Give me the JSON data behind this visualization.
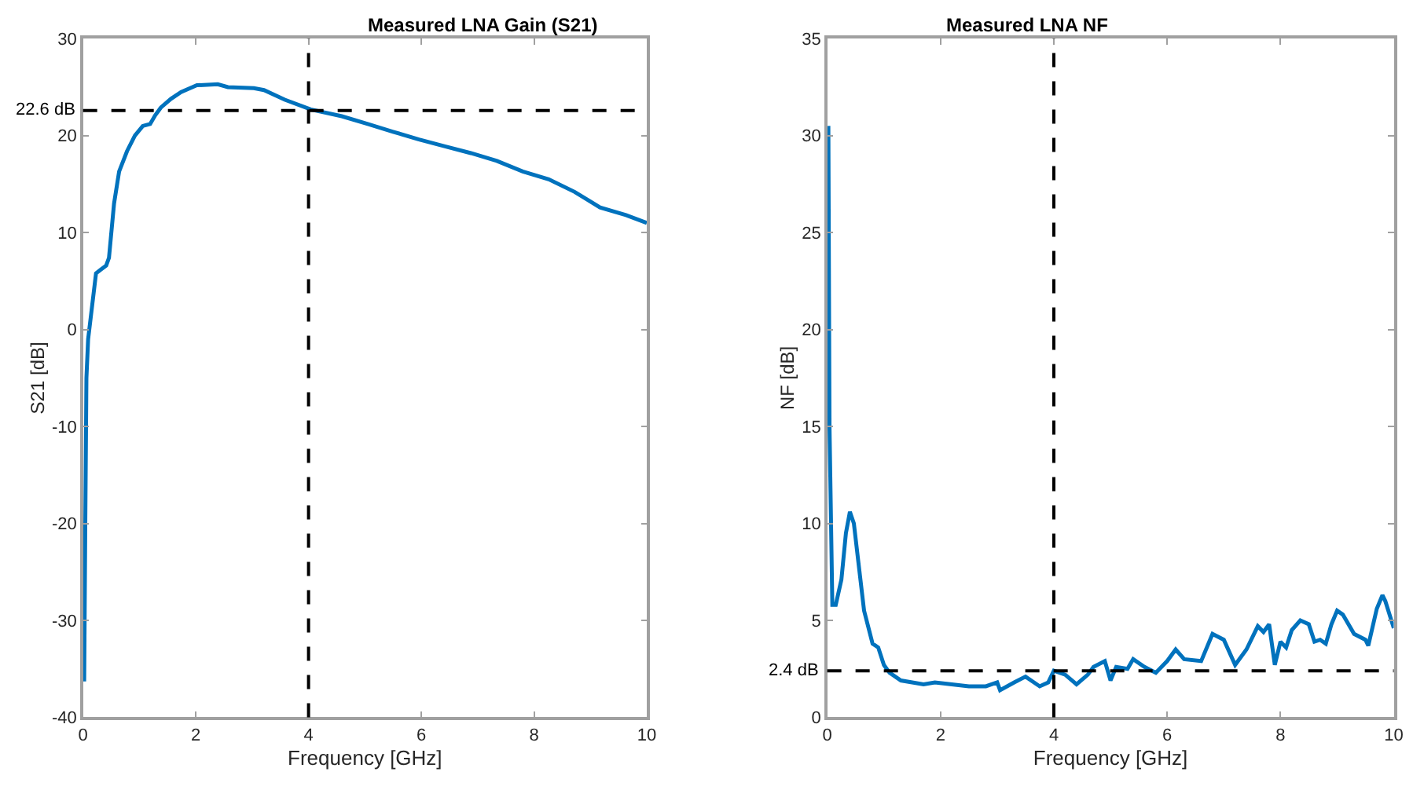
{
  "chart_data": [
    {
      "type": "line",
      "title": "Measured LNA Gain (S21)",
      "xlabel": "Frequency [GHz]",
      "ylabel": "S21 [dB]",
      "series": [
        {
          "color": "#0072bd",
          "x": [
            0.02,
            0.04,
            0.06,
            0.09,
            0.23,
            0.32,
            0.41,
            0.46,
            0.55,
            0.64,
            0.78,
            0.92,
            1.06,
            1.19,
            1.28,
            1.38,
            1.56,
            1.74,
            2.02,
            2.39,
            2.57,
            3.03,
            3.21,
            3.58,
            4.04,
            4.59,
            5.05,
            5.5,
            5.96,
            6.42,
            6.88,
            7.34,
            7.8,
            8.26,
            8.72,
            9.17,
            9.63,
            10
          ],
          "values": [
            -36.3,
            -20,
            -5,
            -1,
            5.8,
            6.2,
            6.6,
            7.4,
            13,
            16.3,
            18.4,
            20,
            21,
            21.2,
            22.1,
            22.9,
            23.8,
            24.5,
            25.2,
            25.3,
            25,
            24.9,
            24.7,
            23.7,
            22.7,
            22,
            21.2,
            20.4,
            19.6,
            18.9,
            18.2,
            17.4,
            16.3,
            15.5,
            14.2,
            12.6,
            11.8,
            11
          ]
        }
      ],
      "xlim": [
        0,
        10
      ],
      "xticks": [
        0,
        2,
        4,
        6,
        8,
        10
      ],
      "ylim": [
        -40,
        30
      ],
      "yticks": [
        -40,
        -30,
        -20,
        -10,
        0,
        10,
        20,
        30
      ],
      "ref_lines": [
        {
          "axis": "x",
          "value": 4,
          "color": "#000000",
          "line_style": "dashed"
        },
        {
          "axis": "y",
          "value": 22.6,
          "label": "22.6 dB",
          "color": "#000000",
          "line_style": "dashed"
        }
      ],
      "grid": false,
      "line_style": "solid",
      "marker": "none"
    },
    {
      "type": "line",
      "title": "Measured LNA NF",
      "xlabel": "Frequency [GHz]",
      "ylabel": "NF [dB]",
      "series": [
        {
          "color": "#0072bd",
          "x": [
            0.02,
            0.04,
            0.09,
            0.15,
            0.25,
            0.33,
            0.4,
            0.47,
            0.55,
            0.65,
            0.8,
            0.9,
            1.0,
            1.1,
            1.3,
            1.5,
            1.7,
            1.9,
            2.2,
            2.5,
            2.8,
            3.0,
            3.05,
            3.3,
            3.5,
            3.75,
            3.9,
            4.0,
            4.2,
            4.4,
            4.6,
            4.7,
            4.9,
            5.0,
            5.1,
            5.3,
            5.4,
            5.6,
            5.8,
            6.0,
            6.15,
            6.3,
            6.6,
            6.8,
            7.0,
            7.2,
            7.4,
            7.6,
            7.7,
            7.8,
            7.9,
            8.0,
            8.1,
            8.2,
            8.35,
            8.5,
            8.6,
            8.7,
            8.8,
            8.9,
            9.0,
            9.1,
            9.3,
            9.5,
            9.55,
            9.7,
            9.8,
            9.85,
            10
          ],
          "values": [
            30.5,
            15,
            5.8,
            5.8,
            7.1,
            9.5,
            10.6,
            10,
            8,
            5.5,
            3.8,
            3.6,
            2.7,
            2.3,
            1.9,
            1.8,
            1.7,
            1.8,
            1.7,
            1.6,
            1.6,
            1.8,
            1.4,
            1.8,
            2.1,
            1.6,
            1.8,
            2.4,
            2.2,
            1.7,
            2.2,
            2.6,
            2.9,
            1.9,
            2.6,
            2.5,
            3.0,
            2.6,
            2.3,
            2.9,
            3.5,
            3.0,
            2.9,
            4.3,
            4.0,
            2.7,
            3.5,
            4.7,
            4.4,
            4.8,
            2.7,
            3.9,
            3.6,
            4.5,
            5.0,
            4.8,
            3.9,
            4.0,
            3.8,
            4.8,
            5.5,
            5.3,
            4.3,
            4.0,
            3.7,
            5.6,
            6.3,
            6.0,
            4.6
          ]
        }
      ],
      "xlim": [
        0,
        10
      ],
      "xticks": [
        0,
        2,
        4,
        6,
        8,
        10
      ],
      "ylim": [
        0,
        35
      ],
      "yticks": [
        0,
        5,
        10,
        15,
        20,
        25,
        30,
        35
      ],
      "ref_lines": [
        {
          "axis": "x",
          "value": 4,
          "color": "#000000",
          "line_style": "dashed"
        },
        {
          "axis": "y",
          "value": 2.4,
          "label": "2.4 dB",
          "color": "#000000",
          "line_style": "dashed"
        }
      ],
      "grid": false,
      "line_style": "solid",
      "marker": "none"
    }
  ]
}
